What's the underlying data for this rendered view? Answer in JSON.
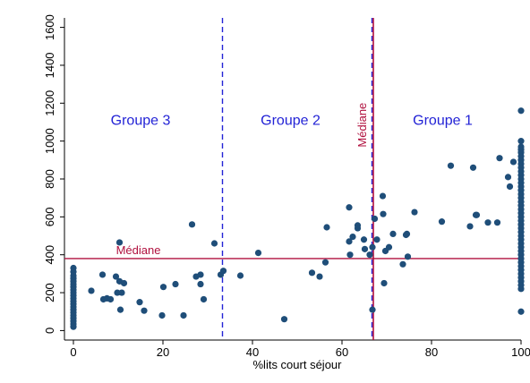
{
  "chart_data": {
    "type": "scatter",
    "title": "",
    "xlabel": "%lits court séjour",
    "ylabel": "",
    "xlim": [
      -2,
      100
    ],
    "ylim": [
      -50,
      1650
    ],
    "xticks": [
      0,
      20,
      40,
      60,
      80,
      100
    ],
    "yticks": [
      0,
      200,
      400,
      600,
      800,
      1000,
      1200,
      1400,
      1600
    ],
    "grid": false,
    "colors": {
      "points": "#1f4e79",
      "group_lines": "#2323d6",
      "median": "#b0103e",
      "group_labels": "#2323d6",
      "axis": "#000000"
    },
    "vlines": [
      {
        "x": 33.3,
        "style": "dashed",
        "color": "#2323d6"
      },
      {
        "x": 66.7,
        "style": "dashed",
        "color": "#2323d6"
      },
      {
        "x": 66.7,
        "style": "solid",
        "color": "#b0103e",
        "label": "Médiane"
      }
    ],
    "hlines": [
      {
        "y": 380,
        "style": "solid",
        "color": "#b0103e",
        "label": "Médiane"
      }
    ],
    "group_labels": [
      {
        "text": "Groupe 3",
        "x": 15,
        "y": 1085
      },
      {
        "text": "Groupe 2",
        "x": 48.5,
        "y": 1085
      },
      {
        "text": "Groupe 1",
        "x": 82.5,
        "y": 1085
      }
    ],
    "points": [
      [
        0,
        330
      ],
      [
        0,
        310
      ],
      [
        0,
        290
      ],
      [
        0,
        275
      ],
      [
        0,
        260
      ],
      [
        0,
        245
      ],
      [
        0,
        230
      ],
      [
        0,
        215
      ],
      [
        0,
        200
      ],
      [
        0,
        185
      ],
      [
        0,
        170
      ],
      [
        0,
        155
      ],
      [
        0,
        140
      ],
      [
        0,
        125
      ],
      [
        0,
        110
      ],
      [
        0,
        95
      ],
      [
        0,
        80
      ],
      [
        0,
        65
      ],
      [
        0,
        50
      ],
      [
        0,
        35
      ],
      [
        0,
        20
      ],
      [
        4,
        210
      ],
      [
        6.5,
        295
      ],
      [
        6.7,
        165
      ],
      [
        7.5,
        170
      ],
      [
        8.3,
        165
      ],
      [
        9.5,
        285
      ],
      [
        9.8,
        200
      ],
      [
        10.3,
        260
      ],
      [
        10.3,
        465
      ],
      [
        10.5,
        110
      ],
      [
        10.8,
        200
      ],
      [
        11.3,
        250
      ],
      [
        14.8,
        150
      ],
      [
        15.8,
        105
      ],
      [
        19.8,
        80
      ],
      [
        20.1,
        230
      ],
      [
        22.8,
        245
      ],
      [
        24.6,
        80
      ],
      [
        26.5,
        560
      ],
      [
        27.4,
        285
      ],
      [
        28.4,
        295
      ],
      [
        28.4,
        245
      ],
      [
        29.1,
        165
      ],
      [
        31.5,
        460
      ],
      [
        32.9,
        295
      ],
      [
        33.5,
        315
      ],
      [
        37.3,
        290
      ],
      [
        41.3,
        410
      ],
      [
        47.1,
        60
      ],
      [
        53.3,
        305
      ],
      [
        55,
        285
      ],
      [
        56.3,
        360
      ],
      [
        56.6,
        545
      ],
      [
        61.6,
        470
      ],
      [
        61.6,
        650
      ],
      [
        61.8,
        400
      ],
      [
        62.4,
        495
      ],
      [
        63.5,
        540
      ],
      [
        63.5,
        555
      ],
      [
        64.9,
        480
      ],
      [
        65.1,
        430
      ],
      [
        66.2,
        400
      ],
      [
        66.8,
        440
      ],
      [
        66.8,
        110
      ],
      [
        67.3,
        590
      ],
      [
        67.8,
        480
      ],
      [
        69.1,
        710
      ],
      [
        69.2,
        615
      ],
      [
        69.4,
        250
      ],
      [
        69.7,
        420
      ],
      [
        70.5,
        440
      ],
      [
        71.4,
        510
      ],
      [
        73.6,
        350
      ],
      [
        74.3,
        505
      ],
      [
        74.5,
        510
      ],
      [
        74.7,
        390
      ],
      [
        76.2,
        625
      ],
      [
        82.3,
        575
      ],
      [
        84.3,
        870
      ],
      [
        88.6,
        550
      ],
      [
        89.3,
        860
      ],
      [
        89.9,
        610
      ],
      [
        90.1,
        610
      ],
      [
        92.6,
        570
      ],
      [
        94.7,
        570
      ],
      [
        95.2,
        910
      ],
      [
        97.1,
        810
      ],
      [
        97.5,
        760
      ],
      [
        98.3,
        890
      ],
      [
        100,
        1160
      ],
      [
        100,
        1000
      ],
      [
        100,
        970
      ],
      [
        100,
        955
      ],
      [
        100,
        940
      ],
      [
        100,
        920
      ],
      [
        100,
        900
      ],
      [
        100,
        880
      ],
      [
        100,
        860
      ],
      [
        100,
        840
      ],
      [
        100,
        820
      ],
      [
        100,
        800
      ],
      [
        100,
        780
      ],
      [
        100,
        760
      ],
      [
        100,
        740
      ],
      [
        100,
        720
      ],
      [
        100,
        700
      ],
      [
        100,
        680
      ],
      [
        100,
        660
      ],
      [
        100,
        640
      ],
      [
        100,
        620
      ],
      [
        100,
        600
      ],
      [
        100,
        580
      ],
      [
        100,
        560
      ],
      [
        100,
        540
      ],
      [
        100,
        520
      ],
      [
        100,
        500
      ],
      [
        100,
        480
      ],
      [
        100,
        460
      ],
      [
        100,
        440
      ],
      [
        100,
        420
      ],
      [
        100,
        400
      ],
      [
        100,
        380
      ],
      [
        100,
        360
      ],
      [
        100,
        340
      ],
      [
        100,
        320
      ],
      [
        100,
        300
      ],
      [
        100,
        280
      ],
      [
        100,
        260
      ],
      [
        100,
        240
      ],
      [
        100,
        220
      ],
      [
        100,
        100
      ]
    ]
  }
}
